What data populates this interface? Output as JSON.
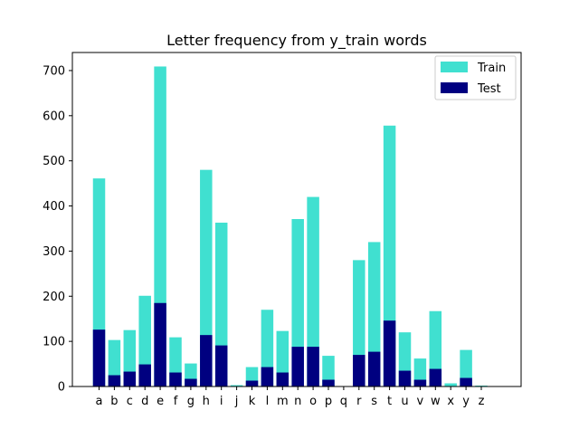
{
  "chart_data": {
    "type": "bar",
    "title": "Letter frequency from y_train words",
    "xlabel": "",
    "ylabel": "",
    "categories": [
      "a",
      "b",
      "c",
      "d",
      "e",
      "f",
      "g",
      "h",
      "i",
      "j",
      "k",
      "l",
      "m",
      "n",
      "o",
      "p",
      "q",
      "r",
      "s",
      "t",
      "u",
      "v",
      "w",
      "x",
      "y",
      "z"
    ],
    "series": [
      {
        "name": "Train",
        "color": "#40e0d0",
        "values": [
          461,
          103,
          125,
          201,
          709,
          109,
          51,
          480,
          363,
          3,
          43,
          170,
          123,
          371,
          420,
          68,
          0,
          280,
          320,
          578,
          120,
          62,
          167,
          7,
          81,
          2
        ]
      },
      {
        "name": "Test",
        "color": "#000080",
        "values": [
          126,
          25,
          33,
          49,
          185,
          31,
          17,
          114,
          91,
          0,
          13,
          43,
          31,
          88,
          88,
          15,
          0,
          70,
          77,
          146,
          35,
          15,
          39,
          0,
          19,
          0
        ]
      }
    ],
    "ylim": [
      0,
      740
    ],
    "yticks": [
      0,
      100,
      200,
      300,
      400,
      500,
      600,
      700
    ],
    "grid": false,
    "legend_position": "top-right",
    "overlay": true
  }
}
